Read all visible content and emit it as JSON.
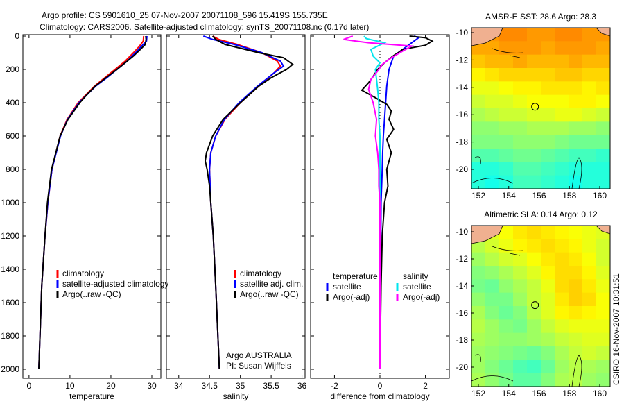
{
  "title_line1": "Argo profile: CS 5901610_25 07-Nov-2007 20071108_596 15.419S 155.735E",
  "title_line2": "Climatology: CARS2006. Satellite-adjusted climatology: synTS_20071108.nc (0.17d later)",
  "footer_stamp": "CSIRO 16-Nov-2007 10:31:51",
  "colors": {
    "red": "#ff0000",
    "blue": "#0000ff",
    "black": "#000000",
    "cyan": "#00e5ee",
    "magenta": "#ff00ff",
    "land": "#f0b090"
  },
  "chart_data": [
    {
      "type": "line",
      "id": "temperature",
      "xlabel": "temperature",
      "ylabel": "",
      "xlim": [
        -1.5,
        32.2
      ],
      "ylim": [
        2000,
        0
      ],
      "xticks": [
        0,
        10,
        20,
        30
      ],
      "yticks": [
        0,
        200,
        400,
        600,
        800,
        1000,
        1200,
        1400,
        1600,
        1800,
        2000
      ],
      "legend": [
        "climatology",
        "satellite-adjusted climatology",
        "Argo(..raw -QC)"
      ],
      "legend_placement": "lower-right",
      "series": [
        {
          "name": "climatology",
          "color": "red",
          "depth": [
            0,
            30,
            60,
            100,
            150,
            200,
            250,
            300,
            400,
            500,
            600,
            800,
            1000,
            1200,
            1500,
            2000
          ],
          "values": [
            28.0,
            27.9,
            27.0,
            25.5,
            23.5,
            21.0,
            18.5,
            16.0,
            12.0,
            9.3,
            7.6,
            5.6,
            4.6,
            3.9,
            3.1,
            2.4
          ]
        },
        {
          "name": "satellite-adjusted climatology",
          "color": "blue",
          "depth": [
            0,
            30,
            60,
            100,
            150,
            200,
            250,
            300,
            400,
            500,
            600,
            800,
            1000,
            1200,
            1500,
            2000
          ],
          "values": [
            28.8,
            28.7,
            27.5,
            26.0,
            24.0,
            21.5,
            19.0,
            16.3,
            12.2,
            9.4,
            7.7,
            5.6,
            4.6,
            3.9,
            3.1,
            2.4
          ]
        },
        {
          "name": "Argo(..raw -QC)",
          "color": "black",
          "depth": [
            0,
            20,
            50,
            80,
            120,
            160,
            200,
            250,
            300,
            350,
            400,
            500,
            600,
            800,
            1000,
            1200,
            1500,
            2000
          ],
          "values": [
            28.5,
            28.6,
            28.4,
            27.2,
            25.5,
            23.5,
            21.5,
            18.8,
            16.2,
            14.2,
            12.4,
            9.5,
            7.6,
            5.5,
            4.5,
            3.9,
            3.1,
            2.4
          ]
        }
      ]
    },
    {
      "type": "line",
      "id": "salinity",
      "xlabel": "salinity",
      "xlim": [
        33.8,
        36.05
      ],
      "ylim": [
        2000,
        0
      ],
      "xticks": [
        34,
        34.5,
        35,
        35.5,
        36
      ],
      "legend": [
        "climatology",
        "satellite adj. clim.",
        "Argo(..raw -QC)"
      ],
      "legend_placement": "lower-right",
      "annotation": [
        "Argo AUSTRALIA",
        "PI: Susan Wijffels"
      ],
      "series": [
        {
          "name": "climatology",
          "color": "red",
          "depth": [
            0,
            20,
            50,
            100,
            150,
            180,
            220,
            300,
            400,
            500,
            600,
            700,
            800,
            1000,
            1200,
            1500,
            2000
          ],
          "values": [
            34.55,
            34.65,
            34.95,
            35.35,
            35.6,
            35.65,
            35.55,
            35.3,
            35.0,
            34.75,
            34.6,
            34.52,
            34.5,
            34.52,
            34.56,
            34.6,
            34.66
          ]
        },
        {
          "name": "satellite adj. clim.",
          "color": "blue",
          "depth": [
            0,
            20,
            50,
            100,
            150,
            180,
            220,
            300,
            400,
            500,
            600,
            700,
            800,
            1000,
            1200,
            1500,
            2000
          ],
          "values": [
            34.4,
            34.55,
            34.9,
            35.35,
            35.65,
            35.7,
            35.55,
            35.28,
            34.98,
            34.74,
            34.6,
            34.52,
            34.5,
            34.52,
            34.56,
            34.6,
            34.66
          ]
        },
        {
          "name": "Argo(..raw -QC)",
          "color": "black",
          "depth": [
            0,
            20,
            50,
            100,
            130,
            170,
            200,
            250,
            300,
            400,
            500,
            600,
            700,
            750,
            800,
            900,
            1000,
            1200,
            1500,
            2000
          ],
          "values": [
            34.55,
            34.6,
            34.75,
            35.3,
            35.7,
            35.85,
            35.75,
            35.5,
            35.3,
            35.0,
            34.72,
            34.55,
            34.45,
            34.43,
            34.46,
            34.5,
            34.52,
            34.56,
            34.6,
            34.66
          ]
        }
      ]
    },
    {
      "type": "line",
      "id": "difference",
      "xlabel": "difference from climatology",
      "xlim": [
        -3.05,
        3.05
      ],
      "ylim": [
        2000,
        0
      ],
      "xticks": [
        -2,
        0,
        2
      ],
      "legend_groups": [
        {
          "title": "temperature",
          "items": [
            "satellite",
            "Argo(-adj)"
          ]
        },
        {
          "title": "salinity",
          "items": [
            "satellite",
            "Argo(-adj)"
          ]
        }
      ],
      "series": [
        {
          "name": "temperature satellite",
          "color": "blue",
          "depth": [
            0,
            10,
            40,
            80,
            120,
            200,
            300,
            400,
            500,
            600,
            700,
            800,
            1000,
            1500,
            2000
          ],
          "values": [
            1.5,
            1.7,
            1.4,
            1.0,
            0.6,
            0.4,
            0.3,
            0.25,
            0.2,
            0.15,
            0.12,
            0.1,
            0.05,
            0.02,
            0.0
          ]
        },
        {
          "name": "temperature Argo(-adj)",
          "color": "black",
          "depth": [
            0,
            10,
            30,
            55,
            80,
            100,
            117,
            160,
            200,
            242,
            280,
            325,
            370,
            410,
            450,
            500,
            560,
            620,
            700,
            800,
            900,
            1000,
            1200,
            1500,
            2000
          ],
          "values": [
            1.3,
            2.0,
            2.3,
            2.0,
            1.0,
            0.8,
            0.6,
            0.2,
            -0.1,
            -0.3,
            -0.5,
            -0.8,
            -0.2,
            0.3,
            0.5,
            0.4,
            0.6,
            0.3,
            0.5,
            0.3,
            0.35,
            0.2,
            0.1,
            0.05,
            0.0
          ]
        },
        {
          "name": "salinity satellite",
          "color": "cyan",
          "depth": [
            0,
            15,
            40,
            80,
            120,
            160,
            200,
            260,
            320,
            400,
            500,
            600,
            800,
            1000,
            2000
          ],
          "values": [
            -0.7,
            -0.6,
            0.2,
            -0.4,
            -0.3,
            0.0,
            -0.2,
            -0.15,
            -0.1,
            -0.05,
            -0.05,
            0.0,
            0.0,
            0.0,
            0.0
          ]
        },
        {
          "name": "salinity Argo(-adj)",
          "color": "magenta",
          "depth": [
            0,
            20,
            40,
            60,
            90,
            130,
            170,
            210,
            260,
            320,
            400,
            500,
            600,
            700,
            800,
            900,
            1000,
            1200,
            2000
          ],
          "values": [
            -1.2,
            -1.6,
            -0.5,
            1.4,
            1.0,
            0.5,
            0.1,
            -0.1,
            -0.4,
            -0.5,
            -0.3,
            -0.15,
            -0.2,
            -0.1,
            -0.05,
            -0.05,
            0.0,
            0.0,
            0.0
          ]
        }
      ]
    },
    {
      "type": "heatmap",
      "id": "sst_map",
      "title": "AMSR-E SST: 28.6 Argo: 28.3",
      "xlim": [
        150.5,
        161.2
      ],
      "ylim": [
        -21.3,
        -9.7
      ],
      "xticks": [
        152,
        154,
        156,
        158,
        160
      ],
      "yticks": [
        -10,
        -12,
        -14,
        -16,
        -18,
        -20
      ],
      "clim": [
        26.5,
        29.5
      ],
      "marker": {
        "lon": 155.735,
        "lat": -15.419
      },
      "rows_lat_top_to_bottom": [
        -10,
        -11,
        -12,
        -13,
        -14,
        -15,
        -16,
        -17,
        -18,
        -19,
        -20,
        -21
      ],
      "values": [
        [
          28.9,
          29.0,
          29.1,
          29.1,
          29.0,
          29.0,
          29.1,
          29.1,
          29.0,
          29.0
        ],
        [
          28.9,
          28.9,
          29.0,
          29.0,
          29.0,
          28.9,
          29.0,
          29.0,
          29.0,
          28.9
        ],
        [
          28.7,
          28.8,
          28.8,
          28.9,
          28.8,
          28.8,
          28.8,
          28.9,
          28.8,
          28.8
        ],
        [
          28.4,
          28.5,
          28.6,
          28.6,
          28.6,
          28.6,
          28.7,
          28.7,
          28.6,
          28.6
        ],
        [
          28.2,
          28.2,
          28.3,
          28.4,
          28.4,
          28.5,
          28.5,
          28.5,
          28.4,
          28.5
        ],
        [
          28.0,
          28.1,
          28.1,
          28.2,
          28.3,
          28.3,
          28.3,
          28.4,
          28.4,
          28.3
        ],
        [
          27.8,
          27.9,
          28.0,
          28.0,
          28.1,
          28.1,
          28.2,
          28.2,
          28.1,
          28.0
        ],
        [
          27.6,
          27.6,
          27.7,
          27.7,
          27.8,
          27.8,
          27.8,
          27.7,
          27.7,
          27.6
        ],
        [
          27.5,
          27.5,
          27.5,
          27.6,
          27.6,
          27.6,
          27.5,
          27.4,
          27.4,
          27.4
        ],
        [
          27.2,
          27.2,
          27.3,
          27.4,
          27.4,
          27.3,
          27.2,
          27.1,
          27.1,
          27.0
        ],
        [
          26.9,
          26.9,
          27.0,
          27.2,
          27.2,
          27.1,
          27.0,
          26.9,
          26.9,
          26.9
        ],
        [
          26.9,
          26.8,
          26.9,
          27.1,
          27.1,
          27.0,
          26.9,
          26.8,
          26.9,
          26.9
        ]
      ]
    },
    {
      "type": "heatmap",
      "id": "sla_map",
      "title": "Altimetric SLA: 0.14 Argo: 0.12",
      "xlim": [
        150.5,
        161.2
      ],
      "ylim": [
        -21.3,
        -9.7
      ],
      "xticks": [
        152,
        154,
        156,
        158,
        160
      ],
      "yticks": [
        -10,
        -12,
        -14,
        -16,
        -18,
        -20
      ],
      "clim": [
        -0.05,
        0.3
      ],
      "marker": {
        "lon": 155.735,
        "lat": -15.419
      },
      "values": [
        [
          0.13,
          0.14,
          0.16,
          0.18,
          0.19,
          0.18,
          0.17,
          0.16,
          0.15,
          0.14
        ],
        [
          0.11,
          0.13,
          0.15,
          0.17,
          0.18,
          0.19,
          0.18,
          0.17,
          0.15,
          0.13
        ],
        [
          0.09,
          0.11,
          0.13,
          0.14,
          0.16,
          0.18,
          0.19,
          0.18,
          0.16,
          0.13
        ],
        [
          0.07,
          0.08,
          0.1,
          0.12,
          0.14,
          0.17,
          0.19,
          0.19,
          0.17,
          0.14
        ],
        [
          0.06,
          0.05,
          0.08,
          0.1,
          0.12,
          0.15,
          0.19,
          0.2,
          0.18,
          0.15
        ],
        [
          0.08,
          0.06,
          0.06,
          0.09,
          0.12,
          0.14,
          0.18,
          0.2,
          0.19,
          0.16
        ],
        [
          0.1,
          0.07,
          0.05,
          0.07,
          0.11,
          0.14,
          0.17,
          0.18,
          0.17,
          0.16
        ],
        [
          0.11,
          0.09,
          0.07,
          0.06,
          0.09,
          0.12,
          0.14,
          0.15,
          0.15,
          0.15
        ],
        [
          0.1,
          0.09,
          0.08,
          0.08,
          0.09,
          0.1,
          0.12,
          0.13,
          0.14,
          0.14
        ],
        [
          0.09,
          0.08,
          0.07,
          0.06,
          0.05,
          0.07,
          0.1,
          0.12,
          0.13,
          0.12
        ],
        [
          0.09,
          0.07,
          0.05,
          0.03,
          0.02,
          0.05,
          0.09,
          0.11,
          0.1,
          0.09
        ],
        [
          0.1,
          0.08,
          0.06,
          0.04,
          0.04,
          0.07,
          0.1,
          0.11,
          0.09,
          0.08
        ]
      ]
    }
  ]
}
